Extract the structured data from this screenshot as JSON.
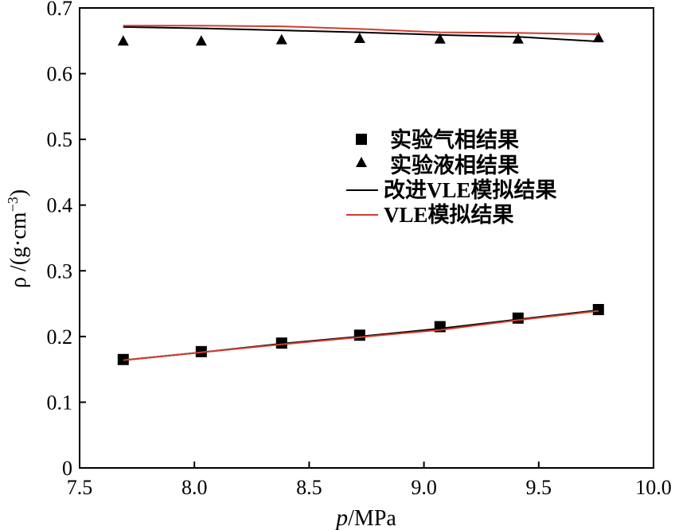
{
  "chart_data": {
    "type": "line",
    "xlabel_symbol": "p",
    "xlabel_unit": "/MPa",
    "ylabel": "ρ /(g·cm",
    "ylabel_exp": "−3",
    "ylabel_close": ")",
    "xlim": [
      7.5,
      10.0
    ],
    "ylim": [
      0,
      0.7
    ],
    "xticks": [
      "7.5",
      "8.0",
      "8.5",
      "9.0",
      "9.5",
      "10.0"
    ],
    "yticks": [
      "0",
      "0.1",
      "0.2",
      "0.3",
      "0.4",
      "0.5",
      "0.6",
      "0.7"
    ],
    "grid": false,
    "legend_position": "center-right",
    "series": [
      {
        "name": "实验气相结果",
        "kind": "scatter",
        "marker": "square",
        "color": "#000000",
        "x": [
          7.69,
          8.03,
          8.38,
          8.72,
          9.07,
          9.41,
          9.76
        ],
        "y": [
          0.165,
          0.177,
          0.19,
          0.202,
          0.215,
          0.228,
          0.241
        ]
      },
      {
        "name": "实验液相结果",
        "kind": "scatter",
        "marker": "triangle",
        "color": "#000000",
        "x": [
          7.69,
          8.03,
          8.38,
          8.72,
          9.07,
          9.41,
          9.76
        ],
        "y": [
          0.65,
          0.65,
          0.652,
          0.654,
          0.653,
          0.653,
          0.655
        ]
      },
      {
        "name": "改进VLE模拟结果",
        "kind": "line",
        "color": "#000000",
        "x": [
          7.69,
          8.03,
          8.38,
          8.72,
          9.07,
          9.41,
          9.76
        ],
        "y": [
          0.671,
          0.669,
          0.666,
          0.663,
          0.659,
          0.656,
          0.649
        ]
      },
      {
        "name": "VLE模拟结果",
        "kind": "line",
        "color": "#d23c2f",
        "x": [
          7.69,
          8.03,
          8.38,
          8.72,
          9.07,
          9.41,
          9.76
        ],
        "y": [
          0.673,
          0.673,
          0.672,
          0.668,
          0.663,
          0.662,
          0.66
        ]
      },
      {
        "name": "改进VLE模拟结果",
        "kind": "line",
        "legend": false,
        "color": "#000000",
        "x": [
          7.69,
          8.03,
          8.38,
          8.72,
          9.07,
          9.41,
          9.76
        ],
        "y": [
          0.164,
          0.176,
          0.189,
          0.2,
          0.212,
          0.226,
          0.24
        ]
      },
      {
        "name": "VLE模拟结果",
        "kind": "line",
        "legend": false,
        "color": "#d23c2f",
        "x": [
          7.69,
          8.03,
          8.38,
          8.72,
          9.07,
          9.41,
          9.76
        ],
        "y": [
          0.164,
          0.176,
          0.188,
          0.199,
          0.21,
          0.225,
          0.239
        ]
      }
    ]
  }
}
